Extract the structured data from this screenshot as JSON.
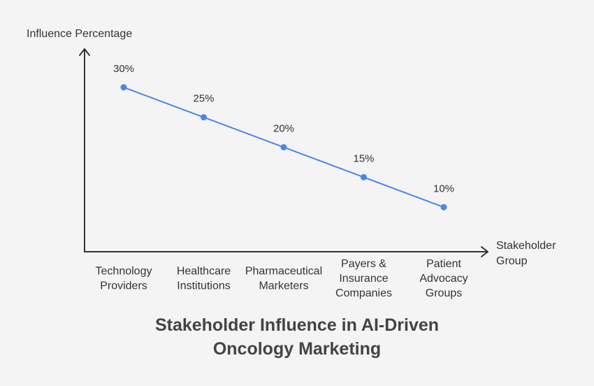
{
  "chart_data": {
    "type": "line",
    "title": [
      "Stakeholder Influence in AI-Driven",
      "Oncology Marketing"
    ],
    "ylabel": "Influence Percentage",
    "xlabel": [
      "Stakeholder",
      "Group"
    ],
    "categories": [
      [
        "Technology",
        "Providers"
      ],
      [
        "Healthcare",
        "Institutions"
      ],
      [
        "Pharmaceutical",
        "Marketers"
      ],
      [
        "Payers &",
        "Insurance",
        "Companies"
      ],
      [
        "Patient",
        "Advocacy",
        "Groups"
      ]
    ],
    "values": [
      30,
      25,
      20,
      15,
      10
    ],
    "data_labels": [
      "30%",
      "25%",
      "20%",
      "15%",
      "10%"
    ],
    "ylim": [
      0,
      35
    ],
    "grid": false,
    "legend": "none",
    "colors": {
      "line": "#4a86e8",
      "axis": "#333333",
      "text": "#333333",
      "title": "#444444",
      "background": "#f4f4f4"
    }
  }
}
